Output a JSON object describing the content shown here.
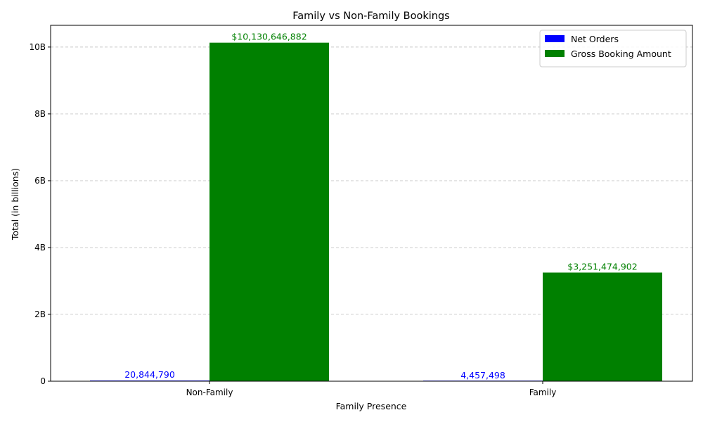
{
  "chart_data": {
    "type": "bar",
    "title": "Family vs Non-Family Bookings",
    "xlabel": "Family Presence",
    "ylabel": "Total (in billions)",
    "categories": [
      "Non-Family",
      "Family"
    ],
    "series": [
      {
        "name": "Net Orders",
        "color": "#0000ff",
        "values": [
          20844790,
          4457498
        ],
        "labels": [
          "20,844,790",
          "4,457,498"
        ]
      },
      {
        "name": "Gross Booking Amount",
        "color": "#008000",
        "values": [
          10130646882,
          3251474902
        ],
        "labels": [
          "$10,130,646,882",
          "$3,251,474,902"
        ]
      }
    ],
    "ylim": [
      0,
      10650000000
    ],
    "yticks": [
      {
        "value": 0,
        "label": "0"
      },
      {
        "value": 2000000000,
        "label": "2B"
      },
      {
        "value": 4000000000,
        "label": "4B"
      },
      {
        "value": 6000000000,
        "label": "6B"
      },
      {
        "value": 8000000000,
        "label": "8B"
      },
      {
        "value": 10000000000,
        "label": "10B"
      }
    ],
    "grid": "y-dashed",
    "legend_position": "top-right"
  }
}
